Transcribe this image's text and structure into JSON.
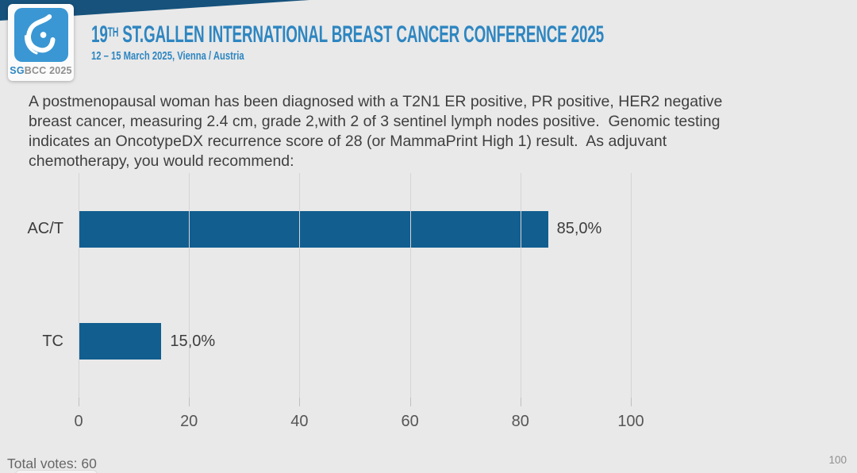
{
  "theme": {
    "background": "#e9e9e9",
    "band_navy": "#16527c",
    "accent_blue": "#2e86c1",
    "logo_blue": "#3a97d3",
    "bar_blue": "#115e8f"
  },
  "header": {
    "logo": {
      "icon": "sgbcc-breast-logo-icon",
      "text_sg": "SG",
      "text_rest": "BCC 2025"
    },
    "title_num": "19",
    "title_sup": "TH",
    "title_rest": " ST.GALLEN INTERNATIONAL BREAST CANCER CONFERENCE 2025",
    "subtitle": "12 – 15 March 2025, Vienna / Austria"
  },
  "question": {
    "lines": [
      "A postmenopausal woman has been diagnosed with a T2N1 ER positive, PR positive, HER2 negative",
      "breast cancer, measuring 2.4 cm, grade 2,with 2 of 3 sentinel lymph nodes positive.  Genomic testing",
      "indicates an OncotypeDX recurrence score of 28 (or MammaPrint High 1) result.  As adjuvant",
      "chemotherapy, you would recommend:"
    ]
  },
  "chart_data": {
    "type": "bar",
    "orientation": "horizontal",
    "categories": [
      "AC/T",
      "TC"
    ],
    "values": [
      85.0,
      15.0
    ],
    "value_labels": [
      "85,0%",
      "15,0%"
    ],
    "x_ticks": [
      0,
      20,
      40,
      60,
      80,
      100
    ],
    "xlim": [
      0,
      100
    ],
    "bar_color": "#115e8f",
    "grid": true,
    "legend": false,
    "title": "",
    "xlabel": "",
    "ylabel": ""
  },
  "footer": {
    "total_votes_label": "Total votes: 60",
    "page_number": "100"
  }
}
